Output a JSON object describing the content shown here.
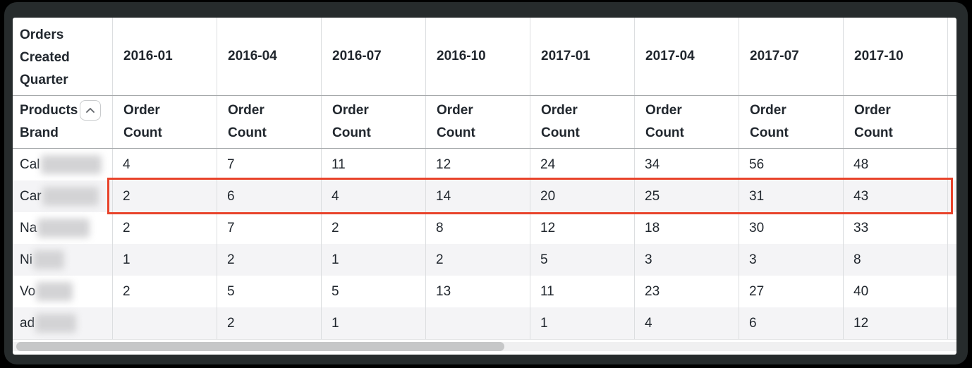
{
  "window": {
    "background_color": "#000000",
    "frame_color": "#262b2c"
  },
  "table": {
    "corner_header": "Orders Created Quarter",
    "row_dimension": {
      "line1": "Products",
      "line2": "Brand"
    },
    "sort_icon": "chevron-up-icon",
    "measure_label": "Order Count",
    "quarters": [
      "2016-01",
      "2016-04",
      "2016-07",
      "2016-10",
      "2017-01",
      "2017-04",
      "2017-07",
      "2017-10"
    ],
    "rows": [
      {
        "brand_prefix": "Cal",
        "redacted": true,
        "redacted_width": 86,
        "highlighted": false,
        "values": [
          "4",
          "7",
          "11",
          "12",
          "24",
          "34",
          "56",
          "48"
        ]
      },
      {
        "brand_prefix": "Car",
        "redacted": true,
        "redacted_width": 80,
        "highlighted": true,
        "values": [
          "2",
          "6",
          "4",
          "14",
          "20",
          "25",
          "31",
          "43"
        ]
      },
      {
        "brand_prefix": "Na",
        "redacted": true,
        "redacted_width": 74,
        "highlighted": false,
        "values": [
          "2",
          "7",
          "2",
          "8",
          "12",
          "18",
          "30",
          "33"
        ]
      },
      {
        "brand_prefix": "Ni",
        "redacted": true,
        "redacted_width": 44,
        "highlighted": false,
        "values": [
          "1",
          "2",
          "1",
          "2",
          "5",
          "3",
          "3",
          "8"
        ]
      },
      {
        "brand_prefix": "Vo",
        "redacted": true,
        "redacted_width": 52,
        "highlighted": false,
        "values": [
          "2",
          "5",
          "5",
          "13",
          "11",
          "23",
          "27",
          "40"
        ]
      },
      {
        "brand_prefix": "ad",
        "redacted": true,
        "redacted_width": 58,
        "highlighted": false,
        "values": [
          "",
          "2",
          "1",
          "",
          "1",
          "4",
          "6",
          "12"
        ]
      }
    ],
    "colors": {
      "highlight_border": "#e8432b",
      "header_text": "#21272e",
      "body_text": "#21272e",
      "stripe": "#f4f4f6",
      "grid_line": "#dcdee0",
      "header_rule": "#a6a9ab",
      "scrollbar_thumb": "#c6c7c8",
      "scrollbar_track": "#f0f0f1"
    }
  }
}
